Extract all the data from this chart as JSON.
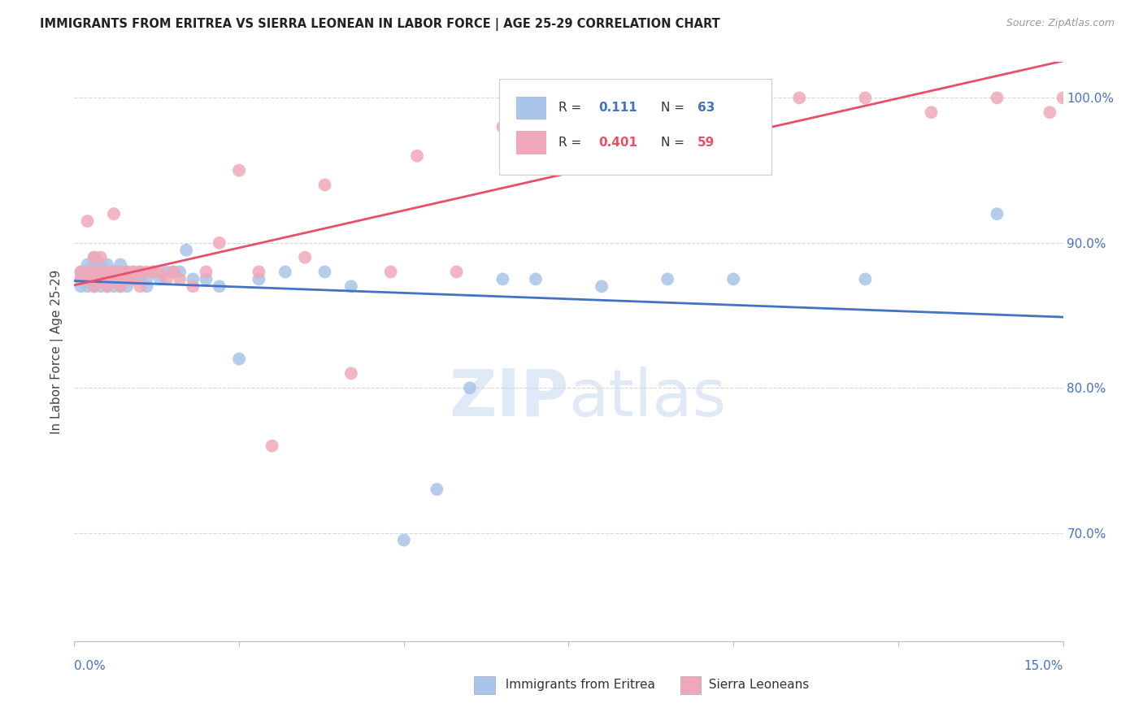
{
  "title": "IMMIGRANTS FROM ERITREA VS SIERRA LEONEAN IN LABOR FORCE | AGE 25-29 CORRELATION CHART",
  "source": "Source: ZipAtlas.com",
  "ylabel": "In Labor Force | Age 25-29",
  "xmin": 0.0,
  "xmax": 0.15,
  "ymin": 0.625,
  "ymax": 1.025,
  "legend_eritrea": "Immigrants from Eritrea",
  "legend_sierra": "Sierra Leoneans",
  "R_eritrea": 0.111,
  "N_eritrea": 63,
  "R_sierra": 0.401,
  "N_sierra": 59,
  "color_eritrea": "#a8c4e8",
  "color_sierra": "#f0a8b8",
  "line_color_eritrea": "#4472c4",
  "line_color_sierra": "#e8506a",
  "eritrea_x": [
    0.001,
    0.001,
    0.001,
    0.002,
    0.002,
    0.002,
    0.002,
    0.003,
    0.003,
    0.003,
    0.003,
    0.003,
    0.004,
    0.004,
    0.004,
    0.004,
    0.004,
    0.004,
    0.005,
    0.005,
    0.005,
    0.005,
    0.005,
    0.006,
    0.006,
    0.006,
    0.007,
    0.007,
    0.007,
    0.007,
    0.008,
    0.008,
    0.008,
    0.009,
    0.009,
    0.01,
    0.01,
    0.011,
    0.011,
    0.012,
    0.013,
    0.014,
    0.015,
    0.016,
    0.017,
    0.018,
    0.02,
    0.022,
    0.025,
    0.028,
    0.032,
    0.038,
    0.042,
    0.05,
    0.055,
    0.06,
    0.065,
    0.07,
    0.08,
    0.09,
    0.1,
    0.12,
    0.14
  ],
  "eritrea_y": [
    0.875,
    0.88,
    0.87,
    0.875,
    0.88,
    0.885,
    0.87,
    0.88,
    0.875,
    0.87,
    0.885,
    0.89,
    0.875,
    0.88,
    0.875,
    0.87,
    0.885,
    0.88,
    0.875,
    0.88,
    0.875,
    0.87,
    0.885,
    0.88,
    0.875,
    0.87,
    0.875,
    0.88,
    0.885,
    0.87,
    0.88,
    0.875,
    0.87,
    0.88,
    0.875,
    0.875,
    0.88,
    0.875,
    0.87,
    0.88,
    0.875,
    0.88,
    0.88,
    0.88,
    0.895,
    0.875,
    0.875,
    0.87,
    0.82,
    0.875,
    0.88,
    0.88,
    0.87,
    0.695,
    0.73,
    0.8,
    0.875,
    0.875,
    0.87,
    0.875,
    0.875,
    0.875,
    0.92
  ],
  "sierra_x": [
    0.001,
    0.001,
    0.002,
    0.002,
    0.002,
    0.003,
    0.003,
    0.003,
    0.003,
    0.004,
    0.004,
    0.004,
    0.004,
    0.005,
    0.005,
    0.005,
    0.006,
    0.006,
    0.006,
    0.007,
    0.007,
    0.007,
    0.008,
    0.008,
    0.009,
    0.009,
    0.01,
    0.01,
    0.011,
    0.012,
    0.013,
    0.014,
    0.015,
    0.016,
    0.018,
    0.02,
    0.022,
    0.025,
    0.028,
    0.03,
    0.035,
    0.038,
    0.042,
    0.048,
    0.052,
    0.058,
    0.065,
    0.07,
    0.075,
    0.08,
    0.09,
    0.095,
    0.1,
    0.11,
    0.12,
    0.13,
    0.14,
    0.148,
    0.15
  ],
  "sierra_y": [
    0.875,
    0.88,
    0.875,
    0.88,
    0.915,
    0.87,
    0.875,
    0.88,
    0.89,
    0.875,
    0.88,
    0.875,
    0.89,
    0.875,
    0.88,
    0.87,
    0.875,
    0.92,
    0.88,
    0.875,
    0.88,
    0.87,
    0.875,
    0.88,
    0.88,
    0.875,
    0.87,
    0.88,
    0.88,
    0.88,
    0.88,
    0.875,
    0.88,
    0.875,
    0.87,
    0.88,
    0.9,
    0.95,
    0.88,
    0.76,
    0.89,
    0.94,
    0.81,
    0.88,
    0.96,
    0.88,
    0.98,
    1.0,
    0.99,
    1.0,
    1.0,
    0.99,
    1.0,
    1.0,
    1.0,
    0.99,
    1.0,
    0.99,
    1.0
  ]
}
